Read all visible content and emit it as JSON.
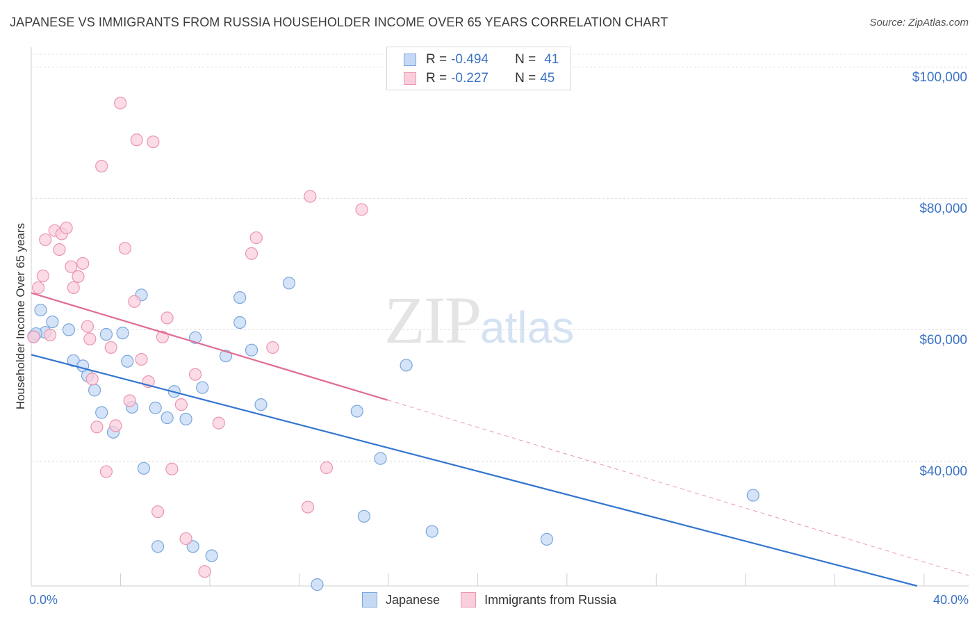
{
  "title": "JAPANESE VS IMMIGRANTS FROM RUSSIA HOUSEHOLDER INCOME OVER 65 YEARS CORRELATION CHART",
  "source": "Source: ZipAtlas.com",
  "watermark": {
    "zip": "ZIP",
    "atlas": "atlas"
  },
  "colors": {
    "japanese_fill": "#c5d9f4",
    "japanese_stroke": "#7aa6dd",
    "japanese_line": "#3375cf",
    "russia_fill": "#f9cfdc",
    "russia_stroke": "#eb95b0",
    "russia_line": "#e06b93",
    "tick_text": "#3b73c4"
  },
  "stats": [
    {
      "r_label": "R = ",
      "r_value": "-0.494",
      "n_label": "N = ",
      "n_value": "41"
    },
    {
      "r_label": "R = ",
      "r_value": "-0.227",
      "n_label": "N = ",
      "n_value": "45"
    }
  ],
  "legend": [
    "Japanese",
    "Immigrants from Russia"
  ],
  "chart_data": {
    "type": "scatter",
    "ylabel": "Householder Income Over 65 years",
    "xlim": [
      0,
      40
    ],
    "ylim": [
      21000,
      103000
    ],
    "x_tick_labels": [
      "0.0%",
      "40.0%"
    ],
    "y_ticks": [
      40000,
      60000,
      80000,
      100000
    ],
    "y_tick_labels": [
      "$40,000",
      "$60,000",
      "$80,000",
      "$100,000"
    ],
    "grid": true,
    "legend_position": "bottom",
    "series": [
      {
        "name": "Japanese",
        "points": [
          [
            0.1,
            59.0
          ],
          [
            0.4,
            63.0
          ],
          [
            0.9,
            61.2
          ],
          [
            0.6,
            59.6
          ],
          [
            1.6,
            60.0
          ],
          [
            1.8,
            55.3
          ],
          [
            2.2,
            54.5
          ],
          [
            2.4,
            53.0
          ],
          [
            2.7,
            50.8
          ],
          [
            3.0,
            47.4
          ],
          [
            3.2,
            59.3
          ],
          [
            3.5,
            44.4
          ],
          [
            3.9,
            59.5
          ],
          [
            4.1,
            55.2
          ],
          [
            4.3,
            48.2
          ],
          [
            4.7,
            65.3
          ],
          [
            4.8,
            38.9
          ],
          [
            5.3,
            48.1
          ],
          [
            5.4,
            27.0
          ],
          [
            5.8,
            46.6
          ],
          [
            6.1,
            50.6
          ],
          [
            6.6,
            46.4
          ],
          [
            6.9,
            27.0
          ],
          [
            7.0,
            58.8
          ],
          [
            7.3,
            51.2
          ],
          [
            7.7,
            25.6
          ],
          [
            8.3,
            56.0
          ],
          [
            8.9,
            64.9
          ],
          [
            8.9,
            61.1
          ],
          [
            9.4,
            56.9
          ],
          [
            9.8,
            48.6
          ],
          [
            11.0,
            67.1
          ],
          [
            12.2,
            21.2
          ],
          [
            13.9,
            47.6
          ],
          [
            14.2,
            31.6
          ],
          [
            14.9,
            40.4
          ],
          [
            16.0,
            54.6
          ],
          [
            17.1,
            29.3
          ],
          [
            22.0,
            28.1
          ],
          [
            30.8,
            34.8
          ],
          [
            0.2,
            59.4
          ]
        ]
      },
      {
        "name": "Immigrants from Russia",
        "points": [
          [
            0.1,
            58.9
          ],
          [
            0.3,
            66.4
          ],
          [
            0.5,
            68.2
          ],
          [
            0.6,
            73.7
          ],
          [
            0.8,
            59.2
          ],
          [
            1.0,
            75.1
          ],
          [
            1.2,
            72.2
          ],
          [
            1.3,
            74.6
          ],
          [
            1.5,
            75.5
          ],
          [
            1.7,
            69.6
          ],
          [
            1.8,
            66.4
          ],
          [
            2.0,
            68.1
          ],
          [
            2.2,
            70.1
          ],
          [
            2.4,
            60.5
          ],
          [
            2.5,
            58.6
          ],
          [
            2.6,
            52.5
          ],
          [
            2.8,
            45.2
          ],
          [
            3.0,
            84.9
          ],
          [
            3.2,
            38.4
          ],
          [
            3.4,
            57.3
          ],
          [
            3.6,
            45.4
          ],
          [
            3.8,
            94.5
          ],
          [
            4.0,
            72.4
          ],
          [
            4.2,
            49.2
          ],
          [
            4.4,
            64.3
          ],
          [
            4.5,
            88.9
          ],
          [
            4.7,
            55.5
          ],
          [
            5.0,
            52.1
          ],
          [
            5.2,
            88.6
          ],
          [
            5.4,
            32.3
          ],
          [
            5.6,
            58.9
          ],
          [
            5.8,
            61.8
          ],
          [
            6.0,
            38.8
          ],
          [
            6.4,
            48.6
          ],
          [
            6.6,
            28.2
          ],
          [
            7.0,
            53.2
          ],
          [
            7.4,
            23.2
          ],
          [
            8.0,
            45.8
          ],
          [
            9.4,
            71.6
          ],
          [
            9.6,
            74.0
          ],
          [
            10.3,
            57.3
          ],
          [
            11.8,
            33.0
          ],
          [
            11.9,
            80.3
          ],
          [
            12.6,
            39.0
          ],
          [
            14.1,
            78.3
          ]
        ]
      }
    ],
    "trendlines": [
      {
        "series": "Japanese",
        "x": [
          0,
          37.8
        ],
        "y": [
          56.2,
          21.0
        ],
        "style": "solid"
      },
      {
        "series": "Immigrants from Russia",
        "x": [
          0,
          15.2
        ],
        "y": [
          65.6,
          49.3
        ],
        "style": "solid"
      },
      {
        "series": "Immigrants from Russia",
        "x": [
          15.2,
          40
        ],
        "y": [
          49.3,
          22.6
        ],
        "style": "dashed"
      }
    ]
  }
}
